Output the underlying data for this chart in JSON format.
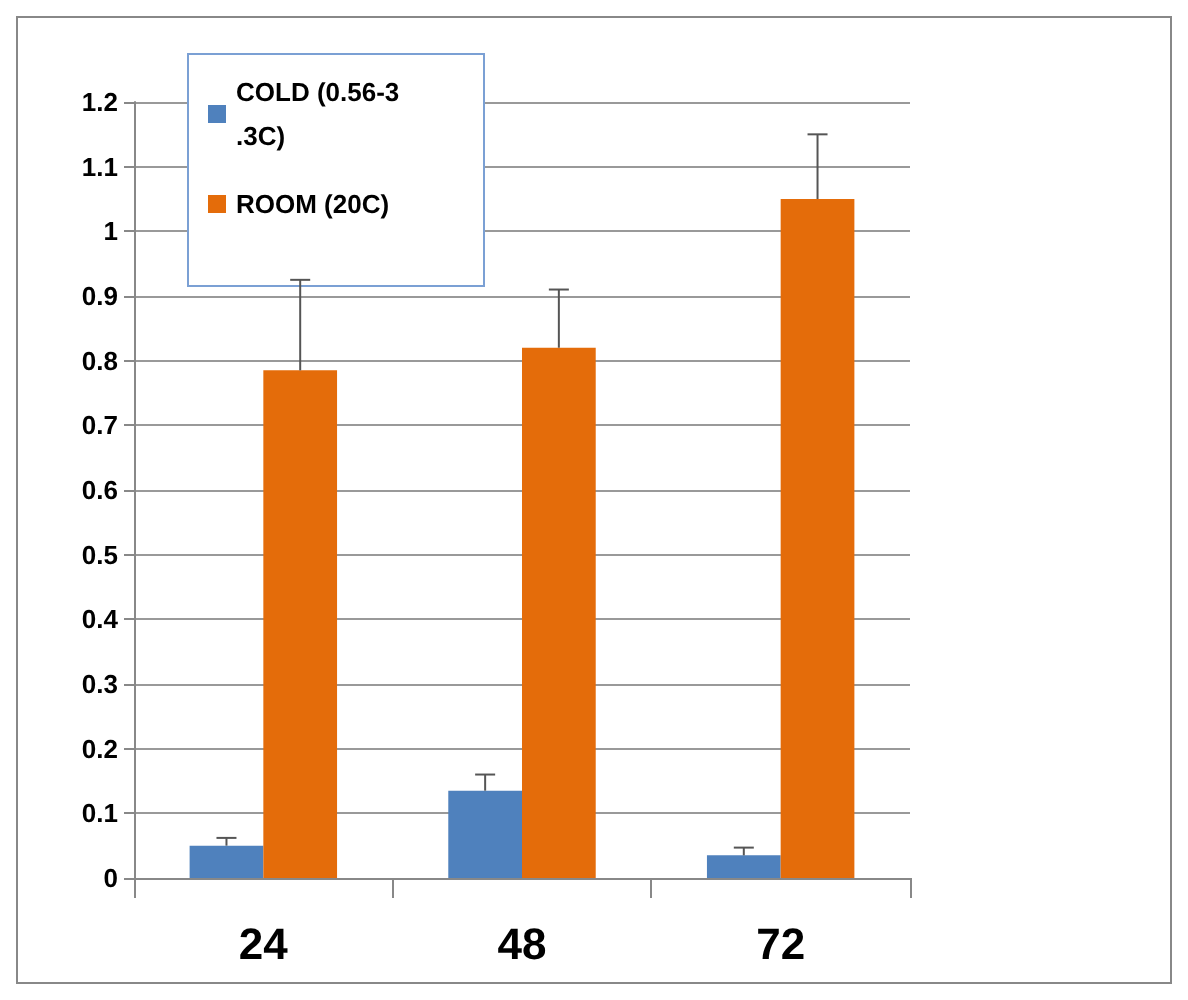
{
  "chart_data": {
    "type": "bar",
    "categories": [
      "24",
      "48",
      "72"
    ],
    "series": [
      {
        "name": "COLD (0.56-3.3C)",
        "color": "#4f81bd",
        "values": [
          0.05,
          0.135,
          0.035
        ],
        "errors": [
          [
            0.05,
            0.062
          ],
          [
            0.135,
            0.16
          ],
          [
            0.035,
            0.047
          ]
        ]
      },
      {
        "name": "ROOM (20C)",
        "color": "#e46c0a",
        "values": [
          0.785,
          0.82,
          1.05
        ],
        "errors": [
          [
            0.785,
            0.925
          ],
          [
            0.82,
            0.91
          ],
          [
            1.05,
            1.15
          ]
        ]
      }
    ],
    "ylim": [
      0,
      1.2
    ],
    "yticks": [
      0,
      0.1,
      0.2,
      0.3,
      0.4,
      0.5,
      0.6,
      0.7,
      0.8,
      0.9,
      1,
      1.1,
      1.2
    ],
    "grid": "y",
    "legend": "top left"
  }
}
